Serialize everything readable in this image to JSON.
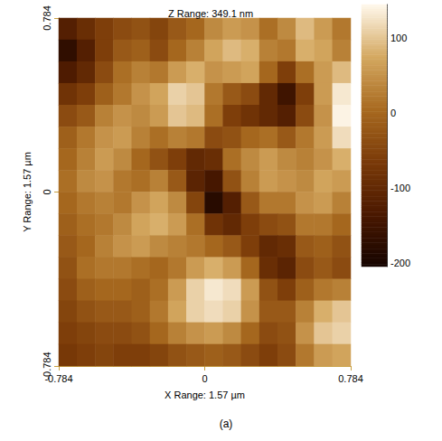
{
  "chart_data": {
    "type": "heatmap",
    "title": "Z Range: 349.1 nm",
    "xlabel": "X Range: 1.57 µm",
    "ylabel": "Y Range: 1.57 µm",
    "caption": "(a)",
    "xlim": [
      -0.784,
      0.784
    ],
    "xticks": [
      -0.784,
      0,
      0.784
    ],
    "ylim": [
      -0.784,
      0.784
    ],
    "yticks": [
      -0.784,
      0,
      0.784
    ],
    "z": [
      [
        -120,
        -90,
        -60,
        -40,
        -30,
        -50,
        -20,
        0,
        40,
        60,
        50,
        10,
        40,
        90,
        60,
        20
      ],
      [
        -170,
        -120,
        -60,
        -20,
        -10,
        -40,
        0,
        30,
        70,
        90,
        80,
        30,
        20,
        80,
        70,
        30
      ],
      [
        -130,
        -100,
        -40,
        10,
        30,
        20,
        60,
        80,
        50,
        60,
        70,
        0,
        -60,
        10,
        60,
        90
      ],
      [
        -80,
        -60,
        -10,
        20,
        50,
        70,
        110,
        100,
        20,
        -20,
        -40,
        -100,
        -150,
        -60,
        60,
        130
      ],
      [
        -40,
        -20,
        30,
        50,
        40,
        60,
        100,
        90,
        10,
        -60,
        -80,
        -100,
        -120,
        -40,
        50,
        140
      ],
      [
        -10,
        20,
        50,
        60,
        30,
        10,
        30,
        20,
        -40,
        -30,
        0,
        10,
        -20,
        20,
        60,
        120
      ],
      [
        0,
        30,
        60,
        40,
        0,
        -30,
        -60,
        -100,
        -90,
        10,
        40,
        60,
        40,
        30,
        50,
        80
      ],
      [
        10,
        40,
        50,
        20,
        10,
        30,
        -20,
        -110,
        -140,
        -30,
        30,
        60,
        50,
        40,
        70,
        60
      ],
      [
        0,
        20,
        30,
        20,
        50,
        70,
        40,
        -50,
        -180,
        -120,
        -20,
        20,
        20,
        50,
        60,
        30
      ],
      [
        -10,
        10,
        20,
        40,
        70,
        80,
        60,
        10,
        -80,
        -100,
        -60,
        -40,
        -30,
        20,
        20,
        0
      ],
      [
        -20,
        0,
        30,
        50,
        60,
        40,
        30,
        20,
        0,
        -20,
        -60,
        -100,
        -90,
        -20,
        -10,
        -30
      ],
      [
        -30,
        10,
        20,
        20,
        10,
        0,
        20,
        60,
        80,
        60,
        0,
        -90,
        -110,
        -40,
        -20,
        -40
      ],
      [
        -40,
        -10,
        0,
        0,
        -10,
        10,
        60,
        110,
        130,
        120,
        60,
        -30,
        -60,
        -10,
        20,
        30
      ],
      [
        -50,
        -30,
        -20,
        -20,
        -10,
        20,
        70,
        110,
        120,
        110,
        50,
        -20,
        -20,
        30,
        80,
        100
      ],
      [
        -60,
        -50,
        -40,
        -40,
        -30,
        0,
        30,
        50,
        60,
        40,
        0,
        -40,
        -30,
        50,
        100,
        110
      ],
      [
        -70,
        -60,
        -50,
        -60,
        -60,
        -50,
        -30,
        -20,
        -10,
        -20,
        -40,
        -60,
        -40,
        20,
        60,
        70
      ]
    ],
    "colorbar_range": [
      -205,
      144.1
    ],
    "colorbar_ticks": [
      -200,
      -100,
      0,
      100
    ]
  }
}
